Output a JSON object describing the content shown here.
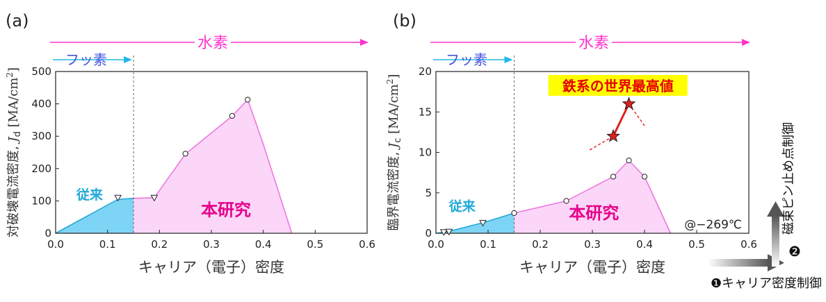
{
  "colors": {
    "hydrogen": "#ff33cc",
    "fluorine": "#20b8e8",
    "conventional_fill": "#7ed4f5",
    "conventional_line": "#20a8d8",
    "study_fill": "#fbd6f8",
    "study_line": "#ee77e0",
    "highlight_bg": "#ffff00",
    "highlight_text": "#e60000",
    "star": "#e02020"
  },
  "chart_data": [
    {
      "type": "area",
      "panel_label": "(a)",
      "xlabel": "キャリア（電子）密度",
      "ylabel_prefix": "対破壊電流密度, ",
      "ylabel_sym": "J",
      "ylabel_sub": "d",
      "ylabel_unit_pre": " [MA/cm",
      "ylabel_sup": "2",
      "ylabel_unit_post": "]",
      "xlim": [
        0,
        0.6
      ],
      "ylim": [
        0,
        500
      ],
      "x_ticks": [
        0,
        0.1,
        0.2,
        0.3,
        0.4,
        0.5,
        0.6
      ],
      "x_tick_labels": [
        "0.0",
        "0.1",
        "0.2",
        "0.3",
        "0.4",
        "0.5",
        "0.6"
      ],
      "y_ticks": [
        0,
        100,
        200,
        300,
        400,
        500
      ],
      "y_tick_labels": [
        "0",
        "100",
        "200",
        "300",
        "400",
        "500"
      ],
      "divider_x": 0.15,
      "hydrogen_label": "水素",
      "hydrogen_range": [
        0,
        0.6
      ],
      "fluorine_label": "フッ素",
      "fluorine_range": [
        0,
        0.15
      ],
      "series": [
        {
          "name": "従来",
          "fill": "conventional",
          "x": [
            0.0,
            0.12,
            0.15
          ],
          "y": [
            0,
            105,
            108
          ]
        },
        {
          "name": "本研究",
          "fill": "study",
          "x": [
            0.15,
            0.19,
            0.25,
            0.34,
            0.37,
            0.4,
            0.455
          ],
          "y": [
            108,
            110,
            245,
            362,
            413,
            275,
            0
          ]
        }
      ],
      "markers": [
        {
          "shape": "triangle-down",
          "x": 0.12,
          "y": 110
        },
        {
          "shape": "triangle-down",
          "x": 0.19,
          "y": 110
        },
        {
          "shape": "circle",
          "x": 0.25,
          "y": 246
        },
        {
          "shape": "circle",
          "x": 0.34,
          "y": 363
        },
        {
          "shape": "circle",
          "x": 0.37,
          "y": 413
        }
      ],
      "labels": {
        "conventional": {
          "text": "従来",
          "x": 0.04,
          "y": 105
        },
        "study": {
          "text": "本研究",
          "x": 0.28,
          "y": 55
        }
      }
    },
    {
      "type": "area",
      "panel_label": "(b)",
      "xlabel": "キャリア（電子）密度",
      "ylabel_prefix": "臨界電流密度, ",
      "ylabel_sym": "J",
      "ylabel_sub": "c",
      "ylabel_unit_pre": " [MA/cm",
      "ylabel_sup": "2",
      "ylabel_unit_post": "]",
      "xlim": [
        0,
        0.6
      ],
      "ylim": [
        0,
        20
      ],
      "x_ticks": [
        0,
        0.1,
        0.2,
        0.3,
        0.4,
        0.5,
        0.6
      ],
      "x_tick_labels": [
        "0.0",
        "0.1",
        "0.2",
        "0.3",
        "0.4",
        "0.5",
        "0.6"
      ],
      "y_ticks": [
        0,
        5,
        10,
        15,
        20
      ],
      "y_tick_labels": [
        "0",
        "5",
        "10",
        "15",
        "20"
      ],
      "divider_x": 0.15,
      "hydrogen_label": "水素",
      "hydrogen_range": [
        0,
        0.6
      ],
      "fluorine_label": "フッ素",
      "fluorine_range": [
        0,
        0.15
      ],
      "series": [
        {
          "name": "従来",
          "fill": "conventional",
          "x": [
            0.0,
            0.015,
            0.025,
            0.09,
            0.15
          ],
          "y": [
            0,
            0.15,
            0.25,
            1.3,
            2.5
          ]
        },
        {
          "name": "本研究",
          "fill": "study",
          "x": [
            0.15,
            0.25,
            0.34,
            0.37,
            0.4,
            0.45
          ],
          "y": [
            2.5,
            4.0,
            7.0,
            9.0,
            7.0,
            0
          ]
        }
      ],
      "markers": [
        {
          "shape": "triangle-down",
          "x": 0.015,
          "y": 0.15
        },
        {
          "shape": "triangle-down",
          "x": 0.025,
          "y": 0.2
        },
        {
          "shape": "triangle-down",
          "x": 0.09,
          "y": 1.3
        },
        {
          "shape": "circle",
          "x": 0.15,
          "y": 2.5
        },
        {
          "shape": "circle",
          "x": 0.25,
          "y": 4.0
        },
        {
          "shape": "circle",
          "x": 0.34,
          "y": 7.0
        },
        {
          "shape": "circle",
          "x": 0.37,
          "y": 9.0
        },
        {
          "shape": "circle",
          "x": 0.4,
          "y": 7.0
        }
      ],
      "stars": [
        {
          "x": 0.34,
          "y": 12.0
        },
        {
          "x": 0.37,
          "y": 16.0
        }
      ],
      "star_dashed": [
        {
          "from": [
            0.295,
            10.3
          ],
          "to": [
            0.34,
            12.0
          ]
        },
        {
          "from": [
            0.37,
            16.0
          ],
          "to": [
            0.4,
            13.3
          ]
        }
      ],
      "highlight": {
        "text": "鉄系の世界最高値",
        "x": 0.325,
        "y": 18.2
      },
      "temperature_label": "@−269℃",
      "labels": {
        "conventional": {
          "text": "従来",
          "x": 0.025,
          "y": 2.8
        },
        "study": {
          "text": "本研究",
          "x": 0.255,
          "y": 1.8
        }
      }
    }
  ],
  "controls": {
    "carrier_control": {
      "number": "❶",
      "label": "キャリア密度制御"
    },
    "pinning_control": {
      "number": "❷",
      "label": "磁束ピン止め点制御"
    }
  }
}
